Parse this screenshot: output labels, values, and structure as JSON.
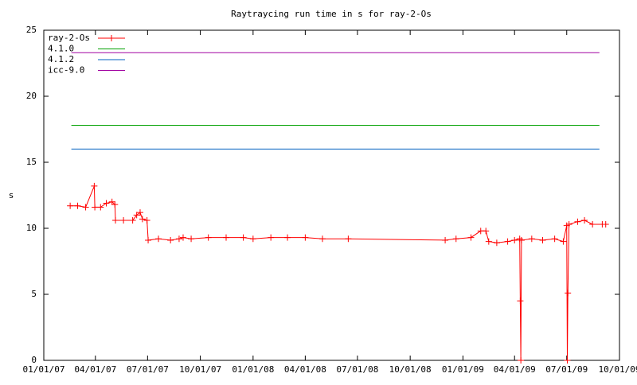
{
  "chart_data": {
    "type": "line",
    "title": "Raytraycing run time in s for ray-2-Os",
    "y_label": "s",
    "xlim": [
      "01/01/07",
      "10/01/09"
    ],
    "xticks": [
      "01/01/07",
      "04/01/07",
      "07/01/07",
      "10/01/07",
      "01/01/08",
      "04/01/08",
      "07/01/08",
      "10/01/08",
      "01/01/09",
      "04/01/09",
      "07/01/09",
      "10/01/09"
    ],
    "ylim": [
      0,
      25
    ],
    "yticks": [
      0,
      5,
      10,
      15,
      20,
      25
    ],
    "series": [
      {
        "name": "ray-2-Os",
        "color": "#ff0000",
        "markers": true,
        "x": [
          "02/16/07",
          "03/01/07",
          "03/15/07",
          "03/30/07",
          "03/31/07",
          "04/10/07",
          "04/20/07",
          "04/30/07",
          "05/05/07",
          "05/06/07",
          "05/20/07",
          "06/05/07",
          "06/12/07",
          "06/18/07",
          "06/22/07",
          "06/30/07",
          "07/02/07",
          "07/20/07",
          "08/10/07",
          "08/25/07",
          "09/01/07",
          "09/15/07",
          "10/15/07",
          "11/15/07",
          "12/15/07",
          "01/01/08",
          "02/01/08",
          "03/01/08",
          "04/01/08",
          "05/01/08",
          "06/15/08",
          "12/01/08",
          "12/20/08",
          "01/15/09",
          "02/01/09",
          "02/10/09",
          "02/15/09",
          "03/01/09",
          "03/20/09",
          "04/01/09",
          "04/10/09",
          "04/11/09",
          "04/12/09",
          "04/13/09",
          "05/01/09",
          "05/20/09",
          "06/10/09",
          "06/25/09",
          "07/01/09",
          "07/02/09",
          "07/03/09",
          "07/05/09",
          "07/20/09",
          "08/01/09",
          "08/15/09",
          "09/01/09",
          "09/07/09"
        ],
        "values": [
          11.7,
          11.7,
          11.6,
          13.2,
          11.6,
          11.6,
          11.9,
          12.0,
          11.8,
          10.6,
          10.6,
          10.6,
          11.0,
          11.2,
          10.7,
          10.6,
          9.1,
          9.2,
          9.1,
          9.2,
          9.3,
          9.2,
          9.3,
          9.3,
          9.3,
          9.2,
          9.3,
          9.3,
          9.3,
          9.2,
          9.2,
          9.1,
          9.2,
          9.3,
          9.8,
          9.8,
          9.0,
          8.9,
          9.0,
          9.1,
          9.2,
          4.5,
          0,
          9.1,
          9.2,
          9.1,
          9.2,
          9.0,
          10.2,
          0,
          5.1,
          10.3,
          10.5,
          10.6,
          10.3,
          10.3,
          10.3
        ]
      },
      {
        "name": "4.1.0",
        "color": "#00a000",
        "x": [
          "02/18/07",
          "08/27/09"
        ],
        "values": [
          17.8,
          17.8
        ]
      },
      {
        "name": "4.1.2",
        "color": "#0060c0",
        "x": [
          "02/18/07",
          "08/27/09"
        ],
        "values": [
          16.0,
          16.0
        ]
      },
      {
        "name": "icc-9.0",
        "color": "#a000a0",
        "x": [
          "02/18/07",
          "08/27/09"
        ],
        "values": [
          23.3,
          23.3
        ]
      }
    ]
  }
}
